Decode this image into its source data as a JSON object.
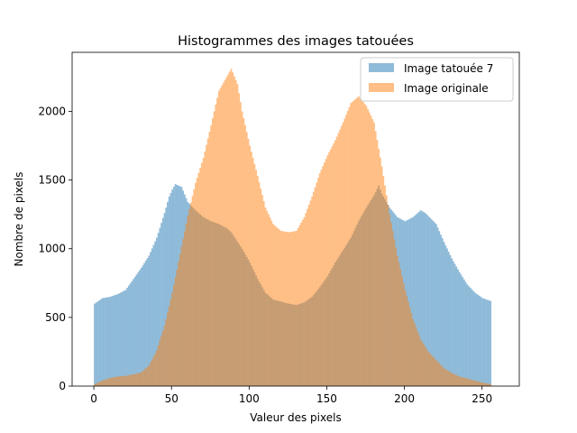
{
  "chart_data": {
    "type": "histogram",
    "title": "Histogrammes des images tatouées",
    "xlabel": "Valeur des pixels",
    "ylabel": "Nombre de pixels",
    "xlim": [
      -14,
      274
    ],
    "ylim": [
      0,
      2430
    ],
    "xticks": [
      0,
      50,
      100,
      150,
      200,
      250
    ],
    "yticks": [
      0,
      500,
      1000,
      1500,
      2000
    ],
    "bin_start": 0,
    "bin_width": 1,
    "legend_position": "top-right",
    "series": [
      {
        "name": "Image tatouée 7",
        "color": "#1f77b4",
        "opacity": 0.5,
        "profile": [
          [
            0,
            600
          ],
          [
            5,
            640
          ],
          [
            10,
            650
          ],
          [
            15,
            670
          ],
          [
            20,
            700
          ],
          [
            25,
            780
          ],
          [
            30,
            860
          ],
          [
            35,
            950
          ],
          [
            40,
            1080
          ],
          [
            45,
            1260
          ],
          [
            48,
            1380
          ],
          [
            50,
            1430
          ],
          [
            52,
            1470
          ],
          [
            56,
            1450
          ],
          [
            60,
            1340
          ],
          [
            65,
            1280
          ],
          [
            70,
            1230
          ],
          [
            75,
            1200
          ],
          [
            80,
            1180
          ],
          [
            85,
            1150
          ],
          [
            88,
            1120
          ],
          [
            95,
            1000
          ],
          [
            100,
            900
          ],
          [
            105,
            780
          ],
          [
            110,
            680
          ],
          [
            115,
            630
          ],
          [
            125,
            600
          ],
          [
            130,
            590
          ],
          [
            135,
            610
          ],
          [
            140,
            650
          ],
          [
            145,
            720
          ],
          [
            150,
            800
          ],
          [
            155,
            900
          ],
          [
            160,
            990
          ],
          [
            165,
            1080
          ],
          [
            170,
            1200
          ],
          [
            175,
            1300
          ],
          [
            180,
            1390
          ],
          [
            183,
            1460
          ],
          [
            185,
            1400
          ],
          [
            190,
            1300
          ],
          [
            195,
            1230
          ],
          [
            200,
            1200
          ],
          [
            205,
            1230
          ],
          [
            210,
            1280
          ],
          [
            213,
            1260
          ],
          [
            220,
            1180
          ],
          [
            225,
            1050
          ],
          [
            230,
            930
          ],
          [
            235,
            830
          ],
          [
            240,
            740
          ],
          [
            245,
            680
          ],
          [
            250,
            640
          ],
          [
            255,
            620
          ]
        ]
      },
      {
        "name": "Image originale",
        "color": "#ff7f0e",
        "opacity": 0.5,
        "profile": [
          [
            0,
            15
          ],
          [
            5,
            40
          ],
          [
            10,
            60
          ],
          [
            15,
            70
          ],
          [
            20,
            75
          ],
          [
            25,
            85
          ],
          [
            30,
            100
          ],
          [
            35,
            150
          ],
          [
            40,
            260
          ],
          [
            45,
            440
          ],
          [
            50,
            680
          ],
          [
            55,
            960
          ],
          [
            60,
            1240
          ],
          [
            65,
            1480
          ],
          [
            70,
            1660
          ],
          [
            75,
            1900
          ],
          [
            80,
            2150
          ],
          [
            85,
            2250
          ],
          [
            88,
            2310
          ],
          [
            92,
            2200
          ],
          [
            95,
            2000
          ],
          [
            100,
            1750
          ],
          [
            105,
            1530
          ],
          [
            110,
            1300
          ],
          [
            115,
            1180
          ],
          [
            120,
            1130
          ],
          [
            125,
            1120
          ],
          [
            130,
            1130
          ],
          [
            135,
            1230
          ],
          [
            140,
            1380
          ],
          [
            145,
            1550
          ],
          [
            150,
            1680
          ],
          [
            155,
            1790
          ],
          [
            160,
            1920
          ],
          [
            165,
            2060
          ],
          [
            170,
            2110
          ],
          [
            175,
            2040
          ],
          [
            180,
            1920
          ],
          [
            185,
            1600
          ],
          [
            190,
            1250
          ],
          [
            195,
            950
          ],
          [
            200,
            700
          ],
          [
            205,
            490
          ],
          [
            210,
            340
          ],
          [
            215,
            250
          ],
          [
            220,
            190
          ],
          [
            225,
            130
          ],
          [
            230,
            95
          ],
          [
            235,
            70
          ],
          [
            240,
            55
          ],
          [
            245,
            40
          ],
          [
            250,
            25
          ],
          [
            255,
            15
          ]
        ]
      }
    ]
  }
}
